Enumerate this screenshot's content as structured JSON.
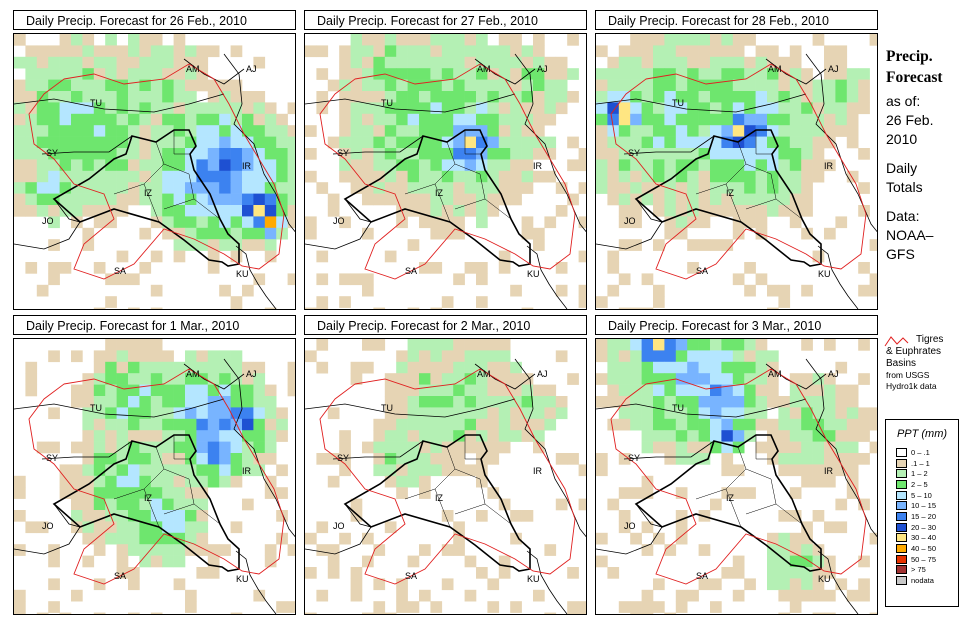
{
  "panels": [
    {
      "title": "Daily Precip. Forecast for  26 Feb., 2010"
    },
    {
      "title": "Daily Precip. Forecast for  27 Feb., 2010"
    },
    {
      "title": "Daily Precip. Forecast for  28 Feb., 2010"
    },
    {
      "title": "Daily Precip. Forecast for  1 Mar., 2010"
    },
    {
      "title": "Daily Precip. Forecast for  2 Mar., 2010"
    },
    {
      "title": "Daily Precip. Forecast for  3 Mar., 2010"
    }
  ],
  "country_labels": [
    "AM",
    "AJ",
    "TU",
    "SY",
    "IR",
    "JO",
    "SA",
    "KU",
    "IZ"
  ],
  "side": {
    "title_line1": "Precip.",
    "title_line2": "Forecast",
    "as_of": "as of:",
    "date_line1": "26 Feb.",
    "date_line2": "2010",
    "daily1": "Daily",
    "daily2": "Totals",
    "data1": "Data:",
    "data2": "NOAA–",
    "data3": "GFS"
  },
  "basins": {
    "line1": "Tigres",
    "line2": "& Euphrates",
    "line3": "Basins",
    "line4": "from USGS",
    "line5": "Hydro1k data",
    "color": "#e02020"
  },
  "legend": {
    "title": "PPT (mm)",
    "items": [
      {
        "label": "0 – .1",
        "color": "#ffffff"
      },
      {
        "label": ".1 – 1",
        "color": "#e6d4b4"
      },
      {
        "label": "1 – 2",
        "color": "#b4f0b4"
      },
      {
        "label": "2 – 5",
        "color": "#6ee66e"
      },
      {
        "label": "5 – 10",
        "color": "#b4e6ff"
      },
      {
        "label": "10 – 15",
        "color": "#78b4ff"
      },
      {
        "label": "15 – 20",
        "color": "#3c82f0"
      },
      {
        "label": "20 – 30",
        "color": "#1e50d2"
      },
      {
        "label": "30 – 40",
        "color": "#ffe682"
      },
      {
        "label": "40 – 50",
        "color": "#ffaa00"
      },
      {
        "label": "50 – 75",
        "color": "#e63200"
      },
      {
        "label": "> 75",
        "color": "#a03232"
      },
      {
        "label": "nodata",
        "color": "#c8c8c8"
      }
    ]
  }
}
